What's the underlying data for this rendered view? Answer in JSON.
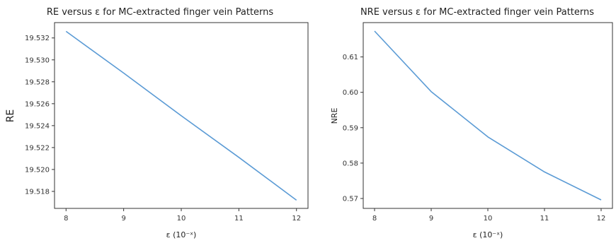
{
  "line_color": "#5b9bd5",
  "chart_data": [
    {
      "type": "line",
      "title": "RE versus ε for MC-extracted finger vein  Patterns",
      "xlabel": "ε (10⁻ˣ)",
      "ylabel": "RE",
      "x": [
        8,
        9,
        10,
        11,
        12
      ],
      "y": [
        19.5326,
        19.5288,
        19.5249,
        19.5211,
        19.5172
      ],
      "xticks": [
        8,
        9,
        10,
        11,
        12
      ],
      "yticks": [
        19.518,
        19.52,
        19.522,
        19.524,
        19.526,
        19.528,
        19.53,
        19.532
      ],
      "ytick_labels": [
        "19.518",
        "19.520",
        "19.522",
        "19.524",
        "19.526",
        "19.528",
        "19.530",
        "19.532"
      ],
      "xlim": [
        7.8,
        12.2
      ],
      "ylim": [
        19.51645,
        19.5334
      ],
      "grid": false
    },
    {
      "type": "line",
      "title": "NRE versus ε for MC-extracted finger vein Patterns",
      "xlabel": "ε (10⁻ˣ)",
      "ylabel": "NRE",
      "x": [
        8,
        9,
        10,
        11,
        12
      ],
      "y": [
        0.6173,
        0.6002,
        0.5874,
        0.5775,
        0.5696
      ],
      "xticks": [
        8,
        9,
        10,
        11,
        12
      ],
      "yticks": [
        0.57,
        0.58,
        0.59,
        0.6,
        0.61
      ],
      "ytick_labels": [
        "0.57",
        "0.58",
        "0.59",
        "0.60",
        "0.61"
      ],
      "xlim": [
        7.8,
        12.2
      ],
      "ylim": [
        0.5672,
        0.6197
      ],
      "grid": false
    }
  ]
}
